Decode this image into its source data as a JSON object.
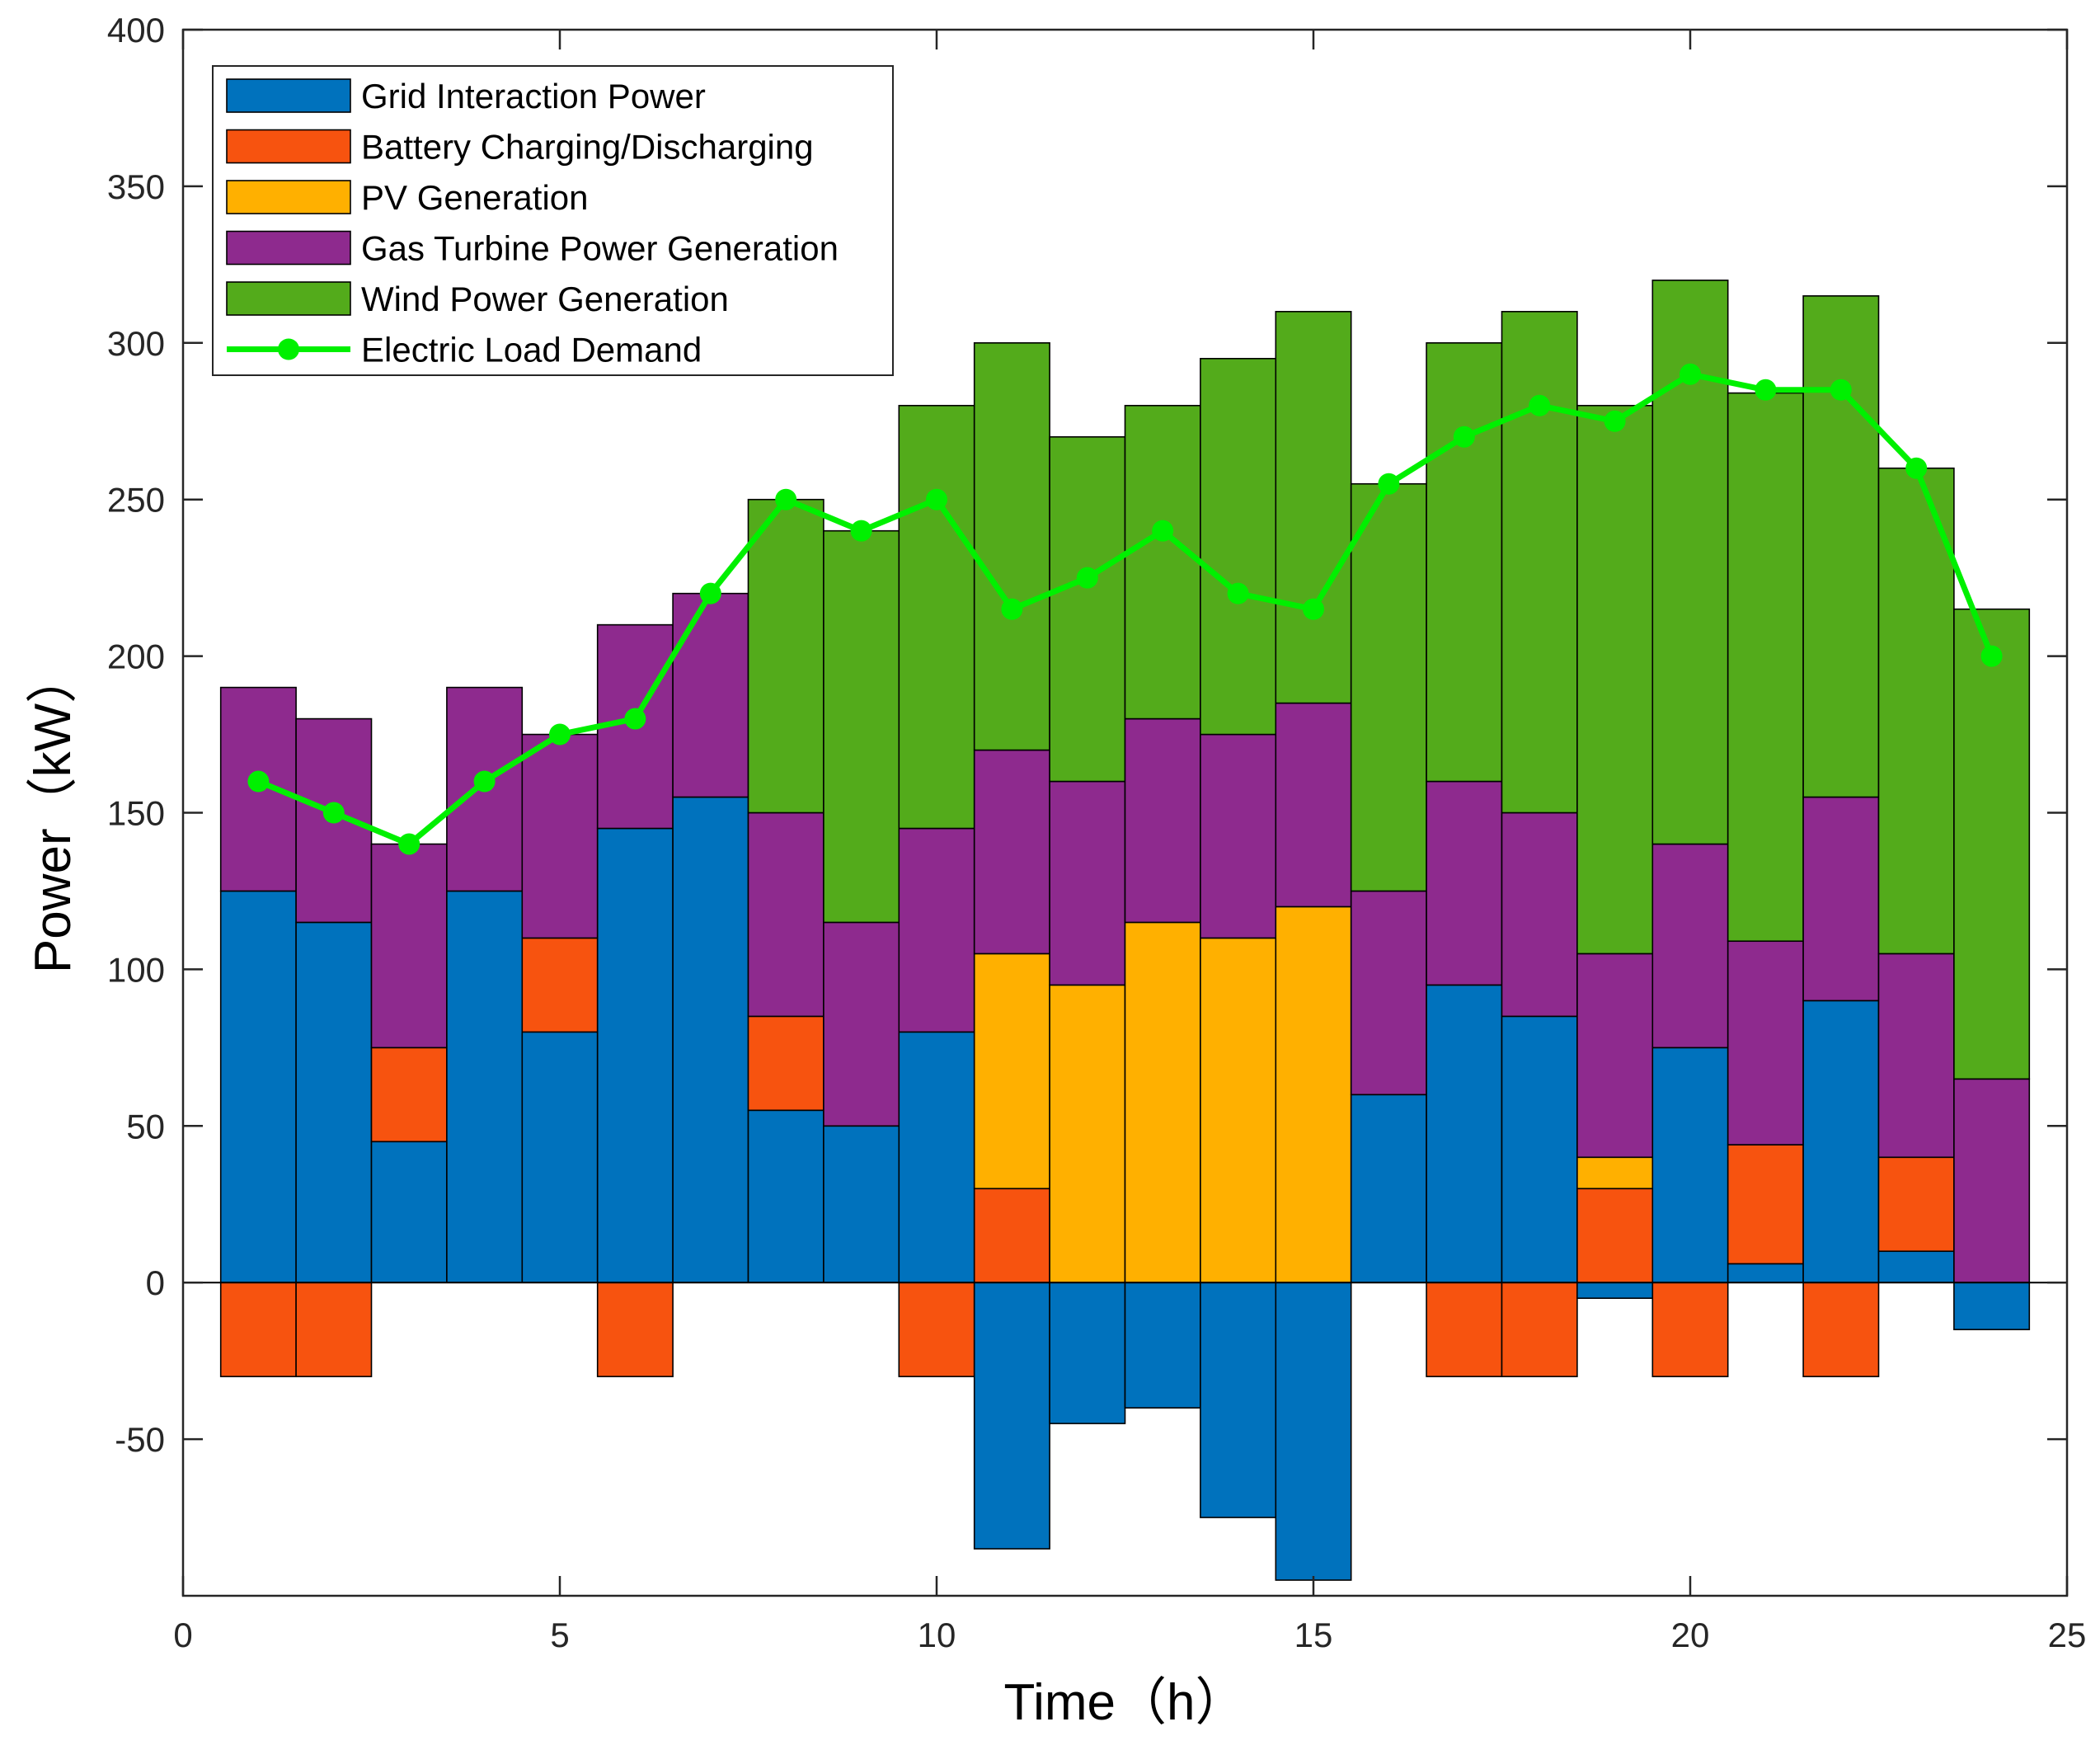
{
  "chart_data": {
    "type": "bar",
    "stacked": true,
    "xlabel": "Time（h）",
    "ylabel": "Power（kW）",
    "xlim": [
      0,
      25
    ],
    "ylim": [
      -100,
      400
    ],
    "xticks": [
      0,
      5,
      10,
      15,
      20,
      25
    ],
    "yticks": [
      -50,
      0,
      50,
      100,
      150,
      200,
      250,
      300,
      350,
      400
    ],
    "ytick_labels": [
      "-50",
      "0",
      "50",
      "100",
      "150",
      "200",
      "250",
      "300",
      "350",
      "400"
    ],
    "xtick_labels": [
      "0",
      "5",
      "10",
      "15",
      "20",
      "25"
    ],
    "legend_position": "top-left",
    "x": [
      1,
      2,
      3,
      4,
      5,
      6,
      7,
      8,
      9,
      10,
      11,
      12,
      13,
      14,
      15,
      16,
      17,
      18,
      19,
      20,
      21,
      22,
      23,
      24
    ],
    "series": [
      {
        "name": "Grid Interaction Power",
        "color": "#0072BD",
        "values": [
          125,
          115,
          45,
          125,
          80,
          145,
          155,
          55,
          50,
          80,
          -85,
          -45,
          -40,
          -75,
          -95,
          60,
          95,
          85,
          -5,
          75,
          6,
          90,
          10,
          -15
        ]
      },
      {
        "name": "Battery Charging/Discharging",
        "color": "#F7530F",
        "values": [
          -30,
          -30,
          30,
          0,
          30,
          -30,
          0,
          30,
          0,
          -30,
          30,
          0,
          0,
          0,
          0,
          0,
          -30,
          -30,
          30,
          -30,
          38,
          -30,
          30,
          0
        ]
      },
      {
        "name": "PV Generation",
        "color": "#FFB000",
        "values": [
          0,
          0,
          0,
          0,
          0,
          0,
          0,
          0,
          0,
          0,
          75,
          95,
          115,
          110,
          120,
          0,
          0,
          0,
          10,
          0,
          0,
          0,
          0,
          0
        ]
      },
      {
        "name": "Gas Turbine Power Generation",
        "color": "#8E2A8E",
        "values": [
          65,
          65,
          65,
          65,
          65,
          65,
          65,
          65,
          65,
          65,
          65,
          65,
          65,
          65,
          65,
          65,
          65,
          65,
          65,
          65,
          65,
          65,
          65,
          65
        ]
      },
      {
        "name": "Wind Power Generation",
        "color": "#53AB1B",
        "values": [
          0,
          0,
          0,
          0,
          0,
          0,
          0,
          100,
          125,
          135,
          130,
          110,
          100,
          120,
          125,
          130,
          140,
          160,
          175,
          180,
          175,
          160,
          155,
          150
        ]
      }
    ],
    "line": {
      "name": "Electric Load Demand",
      "color": "#00F000",
      "values": [
        160,
        150,
        140,
        160,
        175,
        180,
        220,
        250,
        240,
        250,
        215,
        225,
        240,
        220,
        215,
        255,
        270,
        280,
        275,
        290,
        285,
        285,
        260,
        200
      ]
    }
  }
}
